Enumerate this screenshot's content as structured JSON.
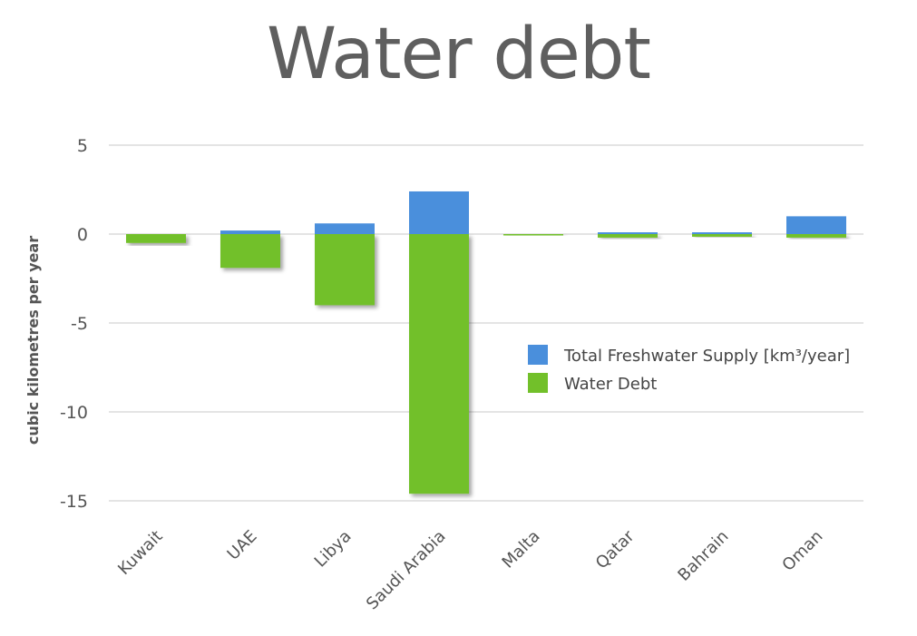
{
  "chart_data": {
    "type": "bar",
    "stacked": true,
    "title": "Water debt",
    "ylabel": "cubic kilometres per year",
    "xlabel": "",
    "ylim": [
      -15,
      5
    ],
    "yticks": [
      5,
      0,
      -5,
      -10,
      -15
    ],
    "grid": true,
    "legend_position": "right",
    "categories": [
      "Kuwait",
      "UAE",
      "Libya",
      "Saudi Arabia",
      "Malta",
      "Qatar",
      "Bahrain",
      "Oman"
    ],
    "series": [
      {
        "name": "Total Freshwater Supply [km³/year]",
        "color": "#4a8fdc",
        "values": [
          0.0,
          0.2,
          0.6,
          2.4,
          0.0,
          0.1,
          0.1,
          1.0
        ]
      },
      {
        "name": "Water Debt",
        "color": "#72c02a",
        "values": [
          -0.5,
          -1.9,
          -4.0,
          -14.6,
          -0.05,
          -0.2,
          -0.15,
          -0.2
        ]
      }
    ]
  }
}
